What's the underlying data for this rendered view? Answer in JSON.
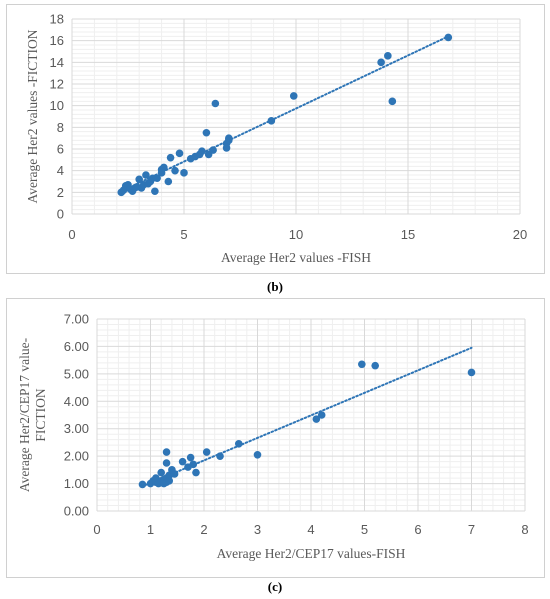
{
  "captions": {
    "b": "(b)",
    "c": "(c)"
  },
  "colors": {
    "marker": "#2e75b6",
    "trend": "#2e75b6",
    "major_grid": "#d9d9d9",
    "minor_grid": "#efefef"
  },
  "chart_data": [
    {
      "type": "scatter",
      "title": "",
      "xlabel": "Average Her2 values -FISH",
      "ylabel": "Average Her2  values -FICTION",
      "xlim": [
        0,
        20
      ],
      "ylim": [
        0,
        18
      ],
      "x_ticks": [
        "0",
        "5",
        "10",
        "15",
        "20"
      ],
      "y_ticks": [
        "0",
        "2",
        "4",
        "6",
        "8",
        "10",
        "12",
        "14",
        "16",
        "18"
      ],
      "grid": true,
      "legend": "none",
      "trendline": {
        "style": "dotted",
        "from": [
          2.1,
          2.0
        ],
        "to": [
          16.8,
          16.4
        ]
      },
      "points": [
        [
          2.2,
          2.0
        ],
        [
          2.3,
          2.2
        ],
        [
          2.4,
          2.6
        ],
        [
          2.5,
          2.7
        ],
        [
          2.6,
          2.3
        ],
        [
          2.7,
          2.1
        ],
        [
          2.8,
          2.4
        ],
        [
          2.9,
          2.5
        ],
        [
          3.0,
          3.2
        ],
        [
          3.1,
          2.4
        ],
        [
          3.2,
          2.7
        ],
        [
          3.3,
          3.6
        ],
        [
          3.4,
          2.8
        ],
        [
          3.5,
          3.0
        ],
        [
          3.6,
          3.3
        ],
        [
          3.7,
          2.1
        ],
        [
          3.8,
          3.3
        ],
        [
          4.0,
          3.8
        ],
        [
          4.0,
          4.1
        ],
        [
          4.1,
          4.3
        ],
        [
          4.3,
          3.0
        ],
        [
          4.4,
          5.2
        ],
        [
          4.6,
          4.0
        ],
        [
          4.8,
          5.6
        ],
        [
          5.0,
          3.8
        ],
        [
          5.3,
          5.1
        ],
        [
          5.5,
          5.3
        ],
        [
          5.7,
          5.5
        ],
        [
          5.8,
          5.8
        ],
        [
          6.0,
          7.5
        ],
        [
          6.1,
          5.5
        ],
        [
          6.3,
          5.9
        ],
        [
          6.4,
          10.2
        ],
        [
          6.9,
          6.5
        ],
        [
          6.9,
          6.1
        ],
        [
          7.0,
          6.8
        ],
        [
          7.0,
          7.0
        ],
        [
          8.9,
          8.6
        ],
        [
          9.9,
          10.9
        ],
        [
          13.8,
          14.0
        ],
        [
          14.1,
          14.6
        ],
        [
          14.3,
          10.4
        ],
        [
          16.8,
          16.3
        ]
      ]
    },
    {
      "type": "scatter",
      "title": "",
      "xlabel": "Average Her2/CEP17 values-FISH",
      "ylabel": "Average Her2/CEP17 value- FICTION",
      "xlim": [
        0,
        8
      ],
      "ylim": [
        0,
        7
      ],
      "x_ticks": [
        "0",
        "1",
        "2",
        "3",
        "4",
        "5",
        "6",
        "7",
        "8"
      ],
      "y_ticks": [
        "0.00",
        "1.00",
        "2.00",
        "3.00",
        "4.00",
        "5.00",
        "6.00",
        "7.00"
      ],
      "grid": true,
      "legend": "none",
      "trendline": {
        "style": "dotted",
        "from": [
          0.85,
          0.9
        ],
        "to": [
          7.0,
          5.95
        ]
      },
      "points": [
        [
          0.85,
          0.97
        ],
        [
          1.0,
          1.0
        ],
        [
          1.05,
          1.1
        ],
        [
          1.1,
          1.05
        ],
        [
          1.1,
          1.2
        ],
        [
          1.15,
          1.0
        ],
        [
          1.2,
          1.1
        ],
        [
          1.2,
          1.4
        ],
        [
          1.25,
          1.15
        ],
        [
          1.25,
          1.0
        ],
        [
          1.3,
          1.2
        ],
        [
          1.3,
          1.05
        ],
        [
          1.3,
          1.75
        ],
        [
          1.35,
          1.3
        ],
        [
          1.35,
          1.1
        ],
        [
          1.4,
          1.5
        ],
        [
          1.45,
          1.35
        ],
        [
          1.3,
          2.15
        ],
        [
          1.6,
          1.8
        ],
        [
          1.7,
          1.6
        ],
        [
          1.75,
          1.95
        ],
        [
          1.8,
          1.7
        ],
        [
          1.85,
          1.4
        ],
        [
          2.05,
          2.15
        ],
        [
          2.3,
          2.0
        ],
        [
          2.65,
          2.45
        ],
        [
          3.0,
          2.05
        ],
        [
          4.1,
          3.35
        ],
        [
          4.2,
          3.5
        ],
        [
          4.95,
          5.35
        ],
        [
          5.2,
          5.3
        ],
        [
          7.0,
          5.05
        ]
      ]
    }
  ]
}
